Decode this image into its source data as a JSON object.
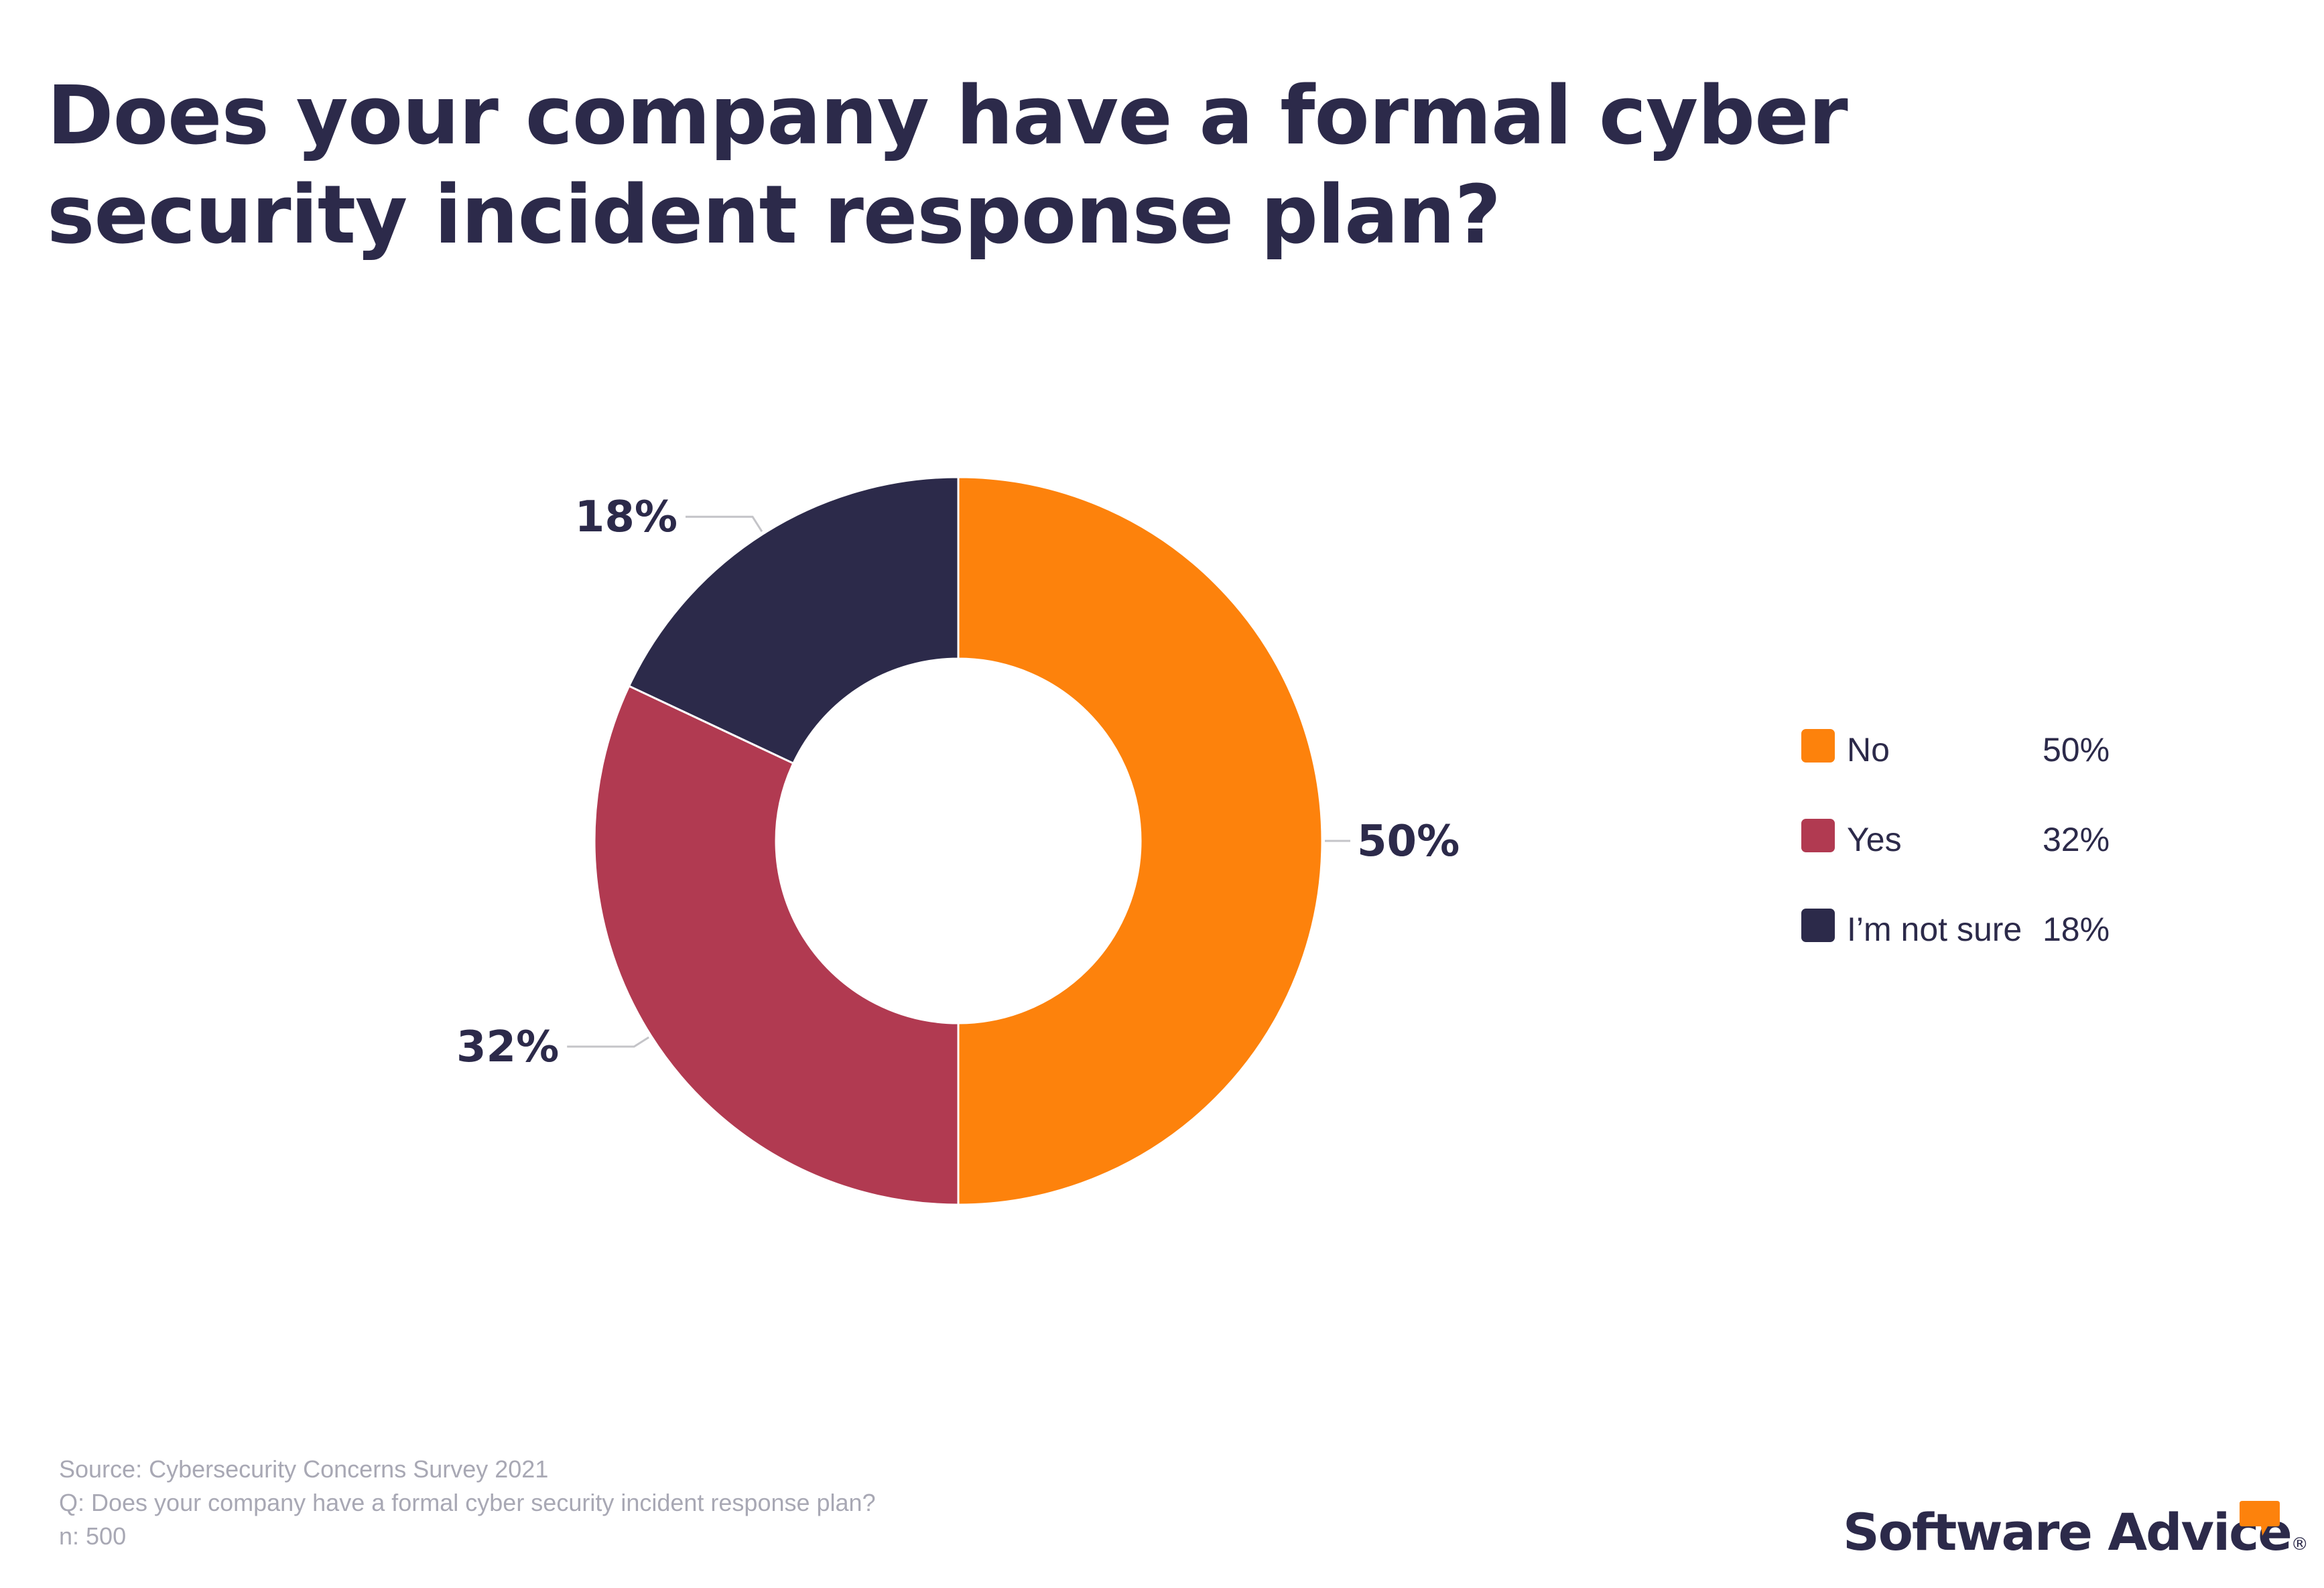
{
  "title_lines": [
    "Does your company have a formal cyber",
    "security incident response plan?"
  ],
  "chart_data": {
    "type": "pie",
    "variant": "donut",
    "title": "Does your company have a formal cyber security incident response plan?",
    "categories": [
      "No",
      "Yes",
      "I’m not sure"
    ],
    "values": [
      50,
      32,
      18
    ],
    "value_labels": [
      "50%",
      "32%",
      "18%"
    ],
    "colors": [
      "#fd820c",
      "#b13a51",
      "#2c2a4a"
    ],
    "legend": {
      "placement": "right",
      "entries": [
        {
          "label": "No",
          "value": "50%",
          "color": "#fd820c"
        },
        {
          "label": "Yes",
          "value": "32%",
          "color": "#b13a51"
        },
        {
          "label": "I’m not sure",
          "value": "18%",
          "color": "#2c2a4a"
        }
      ]
    }
  },
  "source": {
    "line1": "Source: Cybersecurity Concerns Survey 2021",
    "line2": "Q: Does your company have a formal cyber security incident response plan?",
    "line3": "n: 500"
  },
  "brand": {
    "name": "Software Advice",
    "mark": "®",
    "icon": "speech-bubble-icon",
    "icon_color": "#fd820c"
  }
}
